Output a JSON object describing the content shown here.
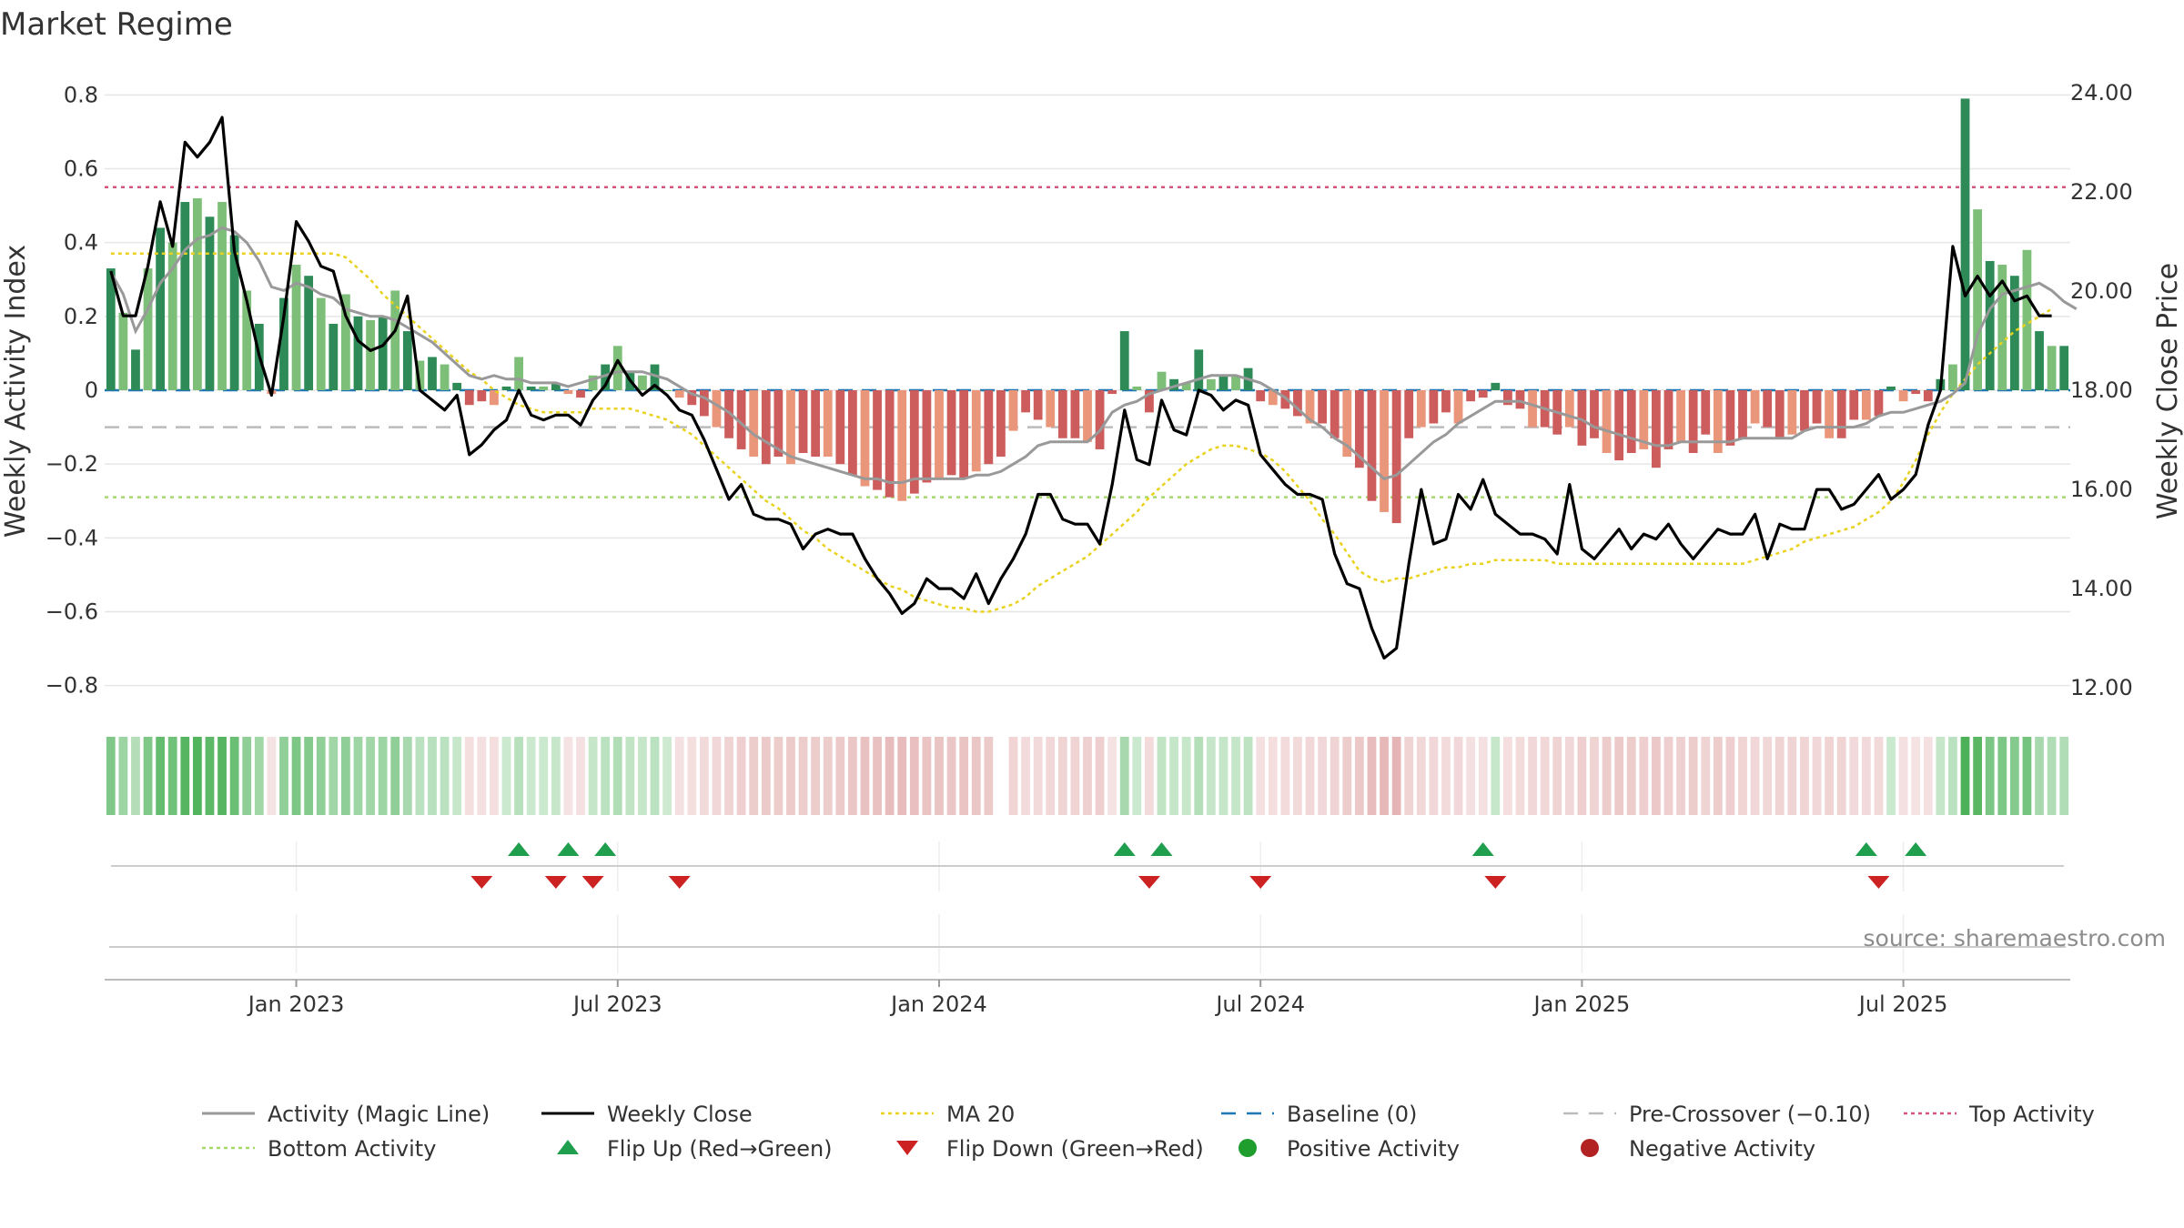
{
  "colors": {
    "pos_dark": "#2e8b57",
    "pos_light": "#7dbf78",
    "neg_dark": "#cd5c5c",
    "neg_light": "#e9967a",
    "close": "#000000",
    "magic": "#999999",
    "ma20": "#e8d21d",
    "baseline": "#1f77b4",
    "pre_cross": "#bbbbbb",
    "top": "#d6557a",
    "bottom": "#a8d86b",
    "flip_up": "#1f9e4e",
    "flip_down": "#cc2222",
    "pos_dot": "#1f9e2e",
    "neg_dot": "#b22222"
  },
  "chart_data": {
    "type": "bar+line",
    "title": "Market Regime",
    "ylabel_left": "Weekly Activity Index",
    "ylabel_right": "Weekly Close Price",
    "ylim_left": [
      -0.86,
      0.86
    ],
    "ylim_right": [
      11.6,
      24.4
    ],
    "left_ticks": [
      {
        "v": 0.8,
        "label": "0.8"
      },
      {
        "v": 0.6,
        "label": "0.6"
      },
      {
        "v": 0.4,
        "label": "0.4"
      },
      {
        "v": 0.2,
        "label": "0.2"
      },
      {
        "v": 0,
        "label": "0"
      },
      {
        "v": -0.2,
        "label": "−0.2"
      },
      {
        "v": -0.4,
        "label": "−0.4"
      },
      {
        "v": -0.6,
        "label": "−0.6"
      },
      {
        "v": -0.8,
        "label": "−0.8"
      }
    ],
    "right_ticks": [
      {
        "v": 24,
        "label": "24.00"
      },
      {
        "v": 22,
        "label": "22.00"
      },
      {
        "v": 20,
        "label": "20.00"
      },
      {
        "v": 18,
        "label": "18.00"
      },
      {
        "v": 16,
        "label": "16.00"
      },
      {
        "v": 14,
        "label": "14.00"
      },
      {
        "v": 12,
        "label": "12.00"
      }
    ],
    "x_ticks": [
      {
        "week": 15,
        "label": "Jan 2023"
      },
      {
        "week": 41,
        "label": "Jul 2023"
      },
      {
        "week": 67,
        "label": "Jan 2024"
      },
      {
        "week": 93,
        "label": "Jul 2024"
      },
      {
        "week": 119,
        "label": "Jan 2025"
      },
      {
        "week": 145,
        "label": "Jul 2025"
      }
    ],
    "reference_lines": {
      "top": 0.55,
      "bottom": -0.29,
      "pre_crossover": -0.1,
      "baseline": 0
    },
    "activity": [
      0.33,
      0.21,
      0.11,
      0.33,
      0.44,
      0.4,
      0.51,
      0.52,
      0.47,
      0.51,
      0.42,
      0.27,
      0.18,
      -0.01,
      0.25,
      0.34,
      0.31,
      0.25,
      0.18,
      0.26,
      0.2,
      0.19,
      0.2,
      0.27,
      0.16,
      0.08,
      0.09,
      0.07,
      0.02,
      -0.04,
      -0.03,
      -0.04,
      0.01,
      0.09,
      0.01,
      0.01,
      0.02,
      -0.01,
      -0.02,
      0.04,
      0.07,
      0.12,
      0.05,
      0.04,
      0.07,
      0,
      -0.02,
      -0.04,
      -0.07,
      -0.1,
      -0.13,
      -0.16,
      -0.18,
      -0.2,
      -0.18,
      -0.2,
      -0.17,
      -0.18,
      -0.18,
      -0.2,
      -0.23,
      -0.26,
      -0.27,
      -0.29,
      -0.3,
      -0.28,
      -0.25,
      -0.24,
      -0.23,
      -0.24,
      -0.22,
      -0.2,
      -0.18,
      -0.11,
      -0.06,
      -0.08,
      -0.1,
      -0.13,
      -0.13,
      -0.14,
      -0.16,
      -0.01,
      0.16,
      0.01,
      -0.06,
      0.05,
      0.03,
      0.02,
      0.11,
      0.03,
      0.04,
      0.04,
      0.06,
      -0.03,
      -0.04,
      -0.05,
      -0.07,
      -0.09,
      -0.09,
      -0.13,
      -0.18,
      -0.21,
      -0.3,
      -0.33,
      -0.36,
      -0.13,
      -0.1,
      -0.09,
      -0.06,
      -0.09,
      -0.03,
      -0.02,
      0.02,
      -0.04,
      -0.05,
      -0.1,
      -0.1,
      -0.12,
      -0.1,
      -0.15,
      -0.13,
      -0.17,
      -0.19,
      -0.17,
      -0.16,
      -0.21,
      -0.16,
      -0.14,
      -0.17,
      -0.12,
      -0.17,
      -0.15,
      -0.13,
      -0.09,
      -0.1,
      -0.13,
      -0.12,
      -0.11,
      -0.09,
      -0.13,
      -0.13,
      -0.08,
      -0.08,
      -0.07,
      0.01,
      -0.03,
      -0.01,
      -0.03,
      0.03,
      0.07,
      0.79,
      0.49,
      0.35,
      0.34,
      0.31,
      0.38,
      0.16,
      0.12,
      0.12
    ],
    "close": [
      20.4,
      19.5,
      19.5,
      20.5,
      21.8,
      20.9,
      23.0,
      22.7,
      23.0,
      23.5,
      20.8,
      19.8,
      18.7,
      17.9,
      19.5,
      21.4,
      21.0,
      20.5,
      20.4,
      19.5,
      19.0,
      18.8,
      18.9,
      19.2,
      19.9,
      18.0,
      17.8,
      17.6,
      17.9,
      16.7,
      16.9,
      17.2,
      17.4,
      18.0,
      17.5,
      17.4,
      17.5,
      17.5,
      17.3,
      17.8,
      18.1,
      18.6,
      18.2,
      17.9,
      18.1,
      17.9,
      17.6,
      17.5,
      17.0,
      16.4,
      15.8,
      16.1,
      15.5,
      15.4,
      15.4,
      15.3,
      14.8,
      15.1,
      15.2,
      15.1,
      15.1,
      14.6,
      14.2,
      13.9,
      13.5,
      13.7,
      14.2,
      14.0,
      14.0,
      13.8,
      14.3,
      13.7,
      14.2,
      14.6,
      15.1,
      15.9,
      15.9,
      15.4,
      15.3,
      15.3,
      14.9,
      16.1,
      17.6,
      16.6,
      16.5,
      17.8,
      17.2,
      17.1,
      18.0,
      17.9,
      17.6,
      17.8,
      17.7,
      16.7,
      16.4,
      16.1,
      15.9,
      15.9,
      15.8,
      14.7,
      14.1,
      14.0,
      13.2,
      12.6,
      12.8,
      14.5,
      16.0,
      14.9,
      15.0,
      15.9,
      15.6,
      16.2,
      15.5,
      15.3,
      15.1,
      15.1,
      15.0,
      14.7,
      16.1,
      14.8,
      14.6,
      14.9,
      15.2,
      14.8,
      15.1,
      15.0,
      15.3,
      14.9,
      14.6,
      14.9,
      15.2,
      15.1,
      15.1,
      15.5,
      14.6,
      15.3,
      15.2,
      15.2,
      16.0,
      16.0,
      15.6,
      15.7,
      16.0,
      16.3,
      15.8,
      16.0,
      16.3,
      17.3,
      18.0,
      20.9,
      19.9,
      20.3,
      19.9,
      20.2,
      19.8,
      19.9,
      19.5,
      19.5
    ],
    "magic": [
      0.32,
      0.26,
      0.16,
      0.22,
      0.29,
      0.33,
      0.38,
      0.41,
      0.42,
      0.44,
      0.43,
      0.4,
      0.35,
      0.28,
      0.27,
      0.29,
      0.28,
      0.26,
      0.25,
      0.22,
      0.21,
      0.2,
      0.2,
      0.19,
      0.17,
      0.15,
      0.13,
      0.1,
      0.07,
      0.04,
      0.03,
      0.04,
      0.03,
      0.03,
      0.02,
      0.02,
      0.02,
      0.01,
      0.02,
      0.03,
      0.04,
      0.05,
      0.05,
      0.05,
      0.04,
      0.03,
      0.01,
      -0.01,
      -0.02,
      -0.04,
      -0.06,
      -0.09,
      -0.12,
      -0.14,
      -0.16,
      -0.18,
      -0.19,
      -0.2,
      -0.21,
      -0.22,
      -0.23,
      -0.24,
      -0.24,
      -0.25,
      -0.25,
      -0.24,
      -0.24,
      -0.24,
      -0.24,
      -0.24,
      -0.23,
      -0.23,
      -0.22,
      -0.2,
      -0.18,
      -0.15,
      -0.14,
      -0.14,
      -0.14,
      -0.14,
      -0.11,
      -0.06,
      -0.04,
      -0.03,
      -0.01,
      0.0,
      0.01,
      0.02,
      0.03,
      0.04,
      0.04,
      0.04,
      0.03,
      0.02,
      0.0,
      -0.02,
      -0.05,
      -0.08,
      -0.1,
      -0.13,
      -0.15,
      -0.18,
      -0.21,
      -0.24,
      -0.23,
      -0.2,
      -0.17,
      -0.14,
      -0.12,
      -0.09,
      -0.07,
      -0.05,
      -0.03,
      -0.03,
      -0.03,
      -0.04,
      -0.05,
      -0.06,
      -0.07,
      -0.08,
      -0.1,
      -0.11,
      -0.12,
      -0.13,
      -0.14,
      -0.15,
      -0.15,
      -0.14,
      -0.14,
      -0.14,
      -0.14,
      -0.14,
      -0.13,
      -0.13,
      -0.13,
      -0.13,
      -0.13,
      -0.11,
      -0.1,
      -0.1,
      -0.1,
      -0.1,
      -0.09,
      -0.07,
      -0.06,
      -0.06,
      -0.05,
      -0.04,
      -0.03,
      -0.01,
      0.02,
      0.15,
      0.22,
      0.26,
      0.27,
      0.28,
      0.29,
      0.27,
      0.24,
      0.22
    ],
    "ma20": [
      0.37,
      0.37,
      0.37,
      0.37,
      0.37,
      0.37,
      0.37,
      0.37,
      0.37,
      0.37,
      0.37,
      0.37,
      0.37,
      0.37,
      0.37,
      0.37,
      0.37,
      0.37,
      0.37,
      0.36,
      0.33,
      0.3,
      0.26,
      0.23,
      0.2,
      0.17,
      0.14,
      0.11,
      0.08,
      0.05,
      0.03,
      0.0,
      -0.02,
      -0.04,
      -0.05,
      -0.06,
      -0.06,
      -0.06,
      -0.06,
      -0.05,
      -0.05,
      -0.05,
      -0.05,
      -0.06,
      -0.07,
      -0.08,
      -0.1,
      -0.12,
      -0.15,
      -0.18,
      -0.21,
      -0.24,
      -0.27,
      -0.3,
      -0.32,
      -0.35,
      -0.38,
      -0.4,
      -0.43,
      -0.45,
      -0.47,
      -0.49,
      -0.51,
      -0.53,
      -0.54,
      -0.56,
      -0.57,
      -0.58,
      -0.59,
      -0.59,
      -0.6,
      -0.6,
      -0.59,
      -0.58,
      -0.56,
      -0.53,
      -0.51,
      -0.49,
      -0.47,
      -0.45,
      -0.42,
      -0.39,
      -0.36,
      -0.33,
      -0.29,
      -0.26,
      -0.23,
      -0.2,
      -0.18,
      -0.16,
      -0.15,
      -0.15,
      -0.16,
      -0.17,
      -0.19,
      -0.22,
      -0.26,
      -0.3,
      -0.35,
      -0.39,
      -0.44,
      -0.49,
      -0.51,
      -0.52,
      -0.51,
      -0.51,
      -0.5,
      -0.49,
      -0.48,
      -0.48,
      -0.47,
      -0.47,
      -0.46,
      -0.46,
      -0.46,
      -0.46,
      -0.46,
      -0.47,
      -0.47,
      -0.47,
      -0.47,
      -0.47,
      -0.47,
      -0.47,
      -0.47,
      -0.47,
      -0.47,
      -0.47,
      -0.47,
      -0.47,
      -0.47,
      -0.47,
      -0.47,
      -0.46,
      -0.45,
      -0.44,
      -0.43,
      -0.41,
      -0.4,
      -0.39,
      -0.38,
      -0.37,
      -0.35,
      -0.33,
      -0.3,
      -0.25,
      -0.19,
      -0.12,
      -0.06,
      -0.01,
      0.03,
      0.07,
      0.1,
      0.13,
      0.16,
      0.18,
      0.2,
      0.22
    ],
    "flip_up_weeks": [
      33,
      37,
      40,
      82,
      85,
      111,
      142,
      146
    ],
    "flip_down_weeks": [
      30,
      36,
      39,
      46,
      84,
      93,
      112,
      143
    ],
    "source": "source: sharemaestro.com"
  },
  "legend": [
    {
      "label": "Activity (Magic Line)",
      "kind": "line",
      "color": "#999999"
    },
    {
      "label": "Weekly Close",
      "kind": "line",
      "color": "#000000"
    },
    {
      "label": "MA 20",
      "kind": "dotted",
      "color": "#e8d21d"
    },
    {
      "label": "Baseline (0)",
      "kind": "dashed",
      "color": "#1f77b4"
    },
    {
      "label": "Pre-Crossover (−0.10)",
      "kind": "dashed",
      "color": "#bbbbbb"
    },
    {
      "label": "Top Activity",
      "kind": "dotted",
      "color": "#d6557a"
    },
    {
      "label": "Bottom Activity",
      "kind": "dotted",
      "color": "#a8d86b"
    },
    {
      "label": "Flip Up (Red→Green)",
      "kind": "triangle-up",
      "color": "#1f9e4e"
    },
    {
      "label": "Flip Down (Green→Red)",
      "kind": "triangle-down",
      "color": "#cc2222"
    },
    {
      "label": "Positive Activity",
      "kind": "dot",
      "color": "#1f9e2e"
    },
    {
      "label": "Negative Activity",
      "kind": "dot",
      "color": "#b22222"
    }
  ]
}
